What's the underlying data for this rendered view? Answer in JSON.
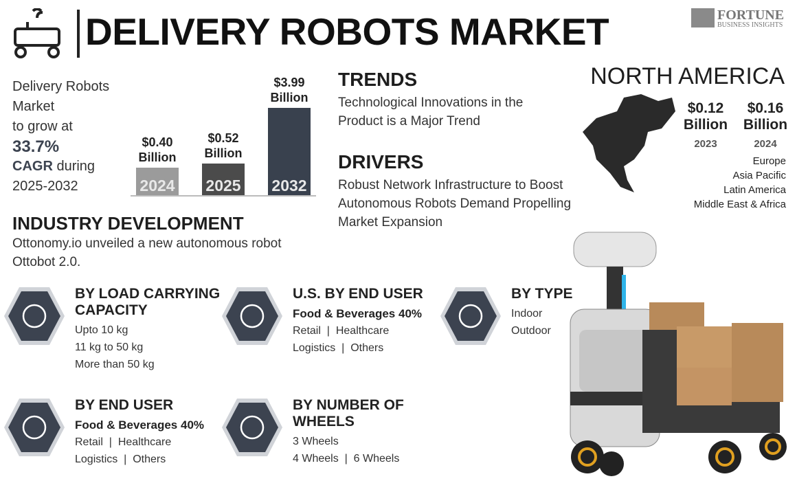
{
  "header": {
    "title": "DELIVERY ROBOTS MARKET",
    "logo": {
      "name": "FORTUNE",
      "tagline": "BUSINESS INSIGHTS"
    }
  },
  "summary": {
    "lines": [
      "Delivery Robots",
      "Market",
      "to grow at"
    ],
    "cagr": "33.7%",
    "cagr_label": "CAGR",
    "during": " during",
    "period": "2025-2032"
  },
  "chart_data": {
    "type": "bar",
    "categories": [
      "2024",
      "2025",
      "2032"
    ],
    "values": [
      0.4,
      0.52,
      3.99
    ],
    "value_labels": [
      "$0.40 Billion",
      "$0.52 Billion",
      "$3.99 Billion"
    ],
    "colors": [
      "#9b9b9b",
      "#4b4b4b",
      "#39414e"
    ]
  },
  "trends": {
    "heading": "TRENDS",
    "text": "Technological Innovations in the Product is a Major Trend"
  },
  "drivers": {
    "heading": "DRIVERS",
    "text": "Robust Network Infrastructure to Boost Autonomous Robots Demand Propelling Market Expansion"
  },
  "industry": {
    "heading": "INDUSTRY DEVELOPMENT",
    "text": "Ottonomy.io unveiled a new autonomous robot Ottobot 2.0."
  },
  "region": {
    "heading": "NORTH AMERICA",
    "stats": [
      {
        "value": "$0.12 Billion",
        "year": "2023"
      },
      {
        "value": "$0.16 Billion",
        "year": "2024"
      }
    ],
    "others": [
      "Europe",
      "Asia Pacific",
      "Latin America",
      "Middle East & Africa"
    ]
  },
  "segments": [
    {
      "heading": "BY LOAD CARRYING CAPACITY",
      "items": [
        "Upto 10 kg",
        "11 kg to 50 kg",
        "More than 50 kg"
      ]
    },
    {
      "heading": "U.S. BY END USER",
      "highlight": "Food & Beverages 40%",
      "items": [
        "Retail  |  Healthcare",
        "Logistics  |  Others"
      ]
    },
    {
      "heading": "BY TYPE",
      "items": [
        "Indoor",
        "Outdoor"
      ]
    },
    {
      "heading": "BY END USER",
      "highlight": "Food & Beverages 40%",
      "items": [
        "Retail  |  Healthcare",
        "Logistics  |  Others"
      ]
    },
    {
      "heading": "BY NUMBER OF WHEELS",
      "items": [
        "3 Wheels",
        "4 Wheels  |  6 Wheels"
      ]
    }
  ]
}
